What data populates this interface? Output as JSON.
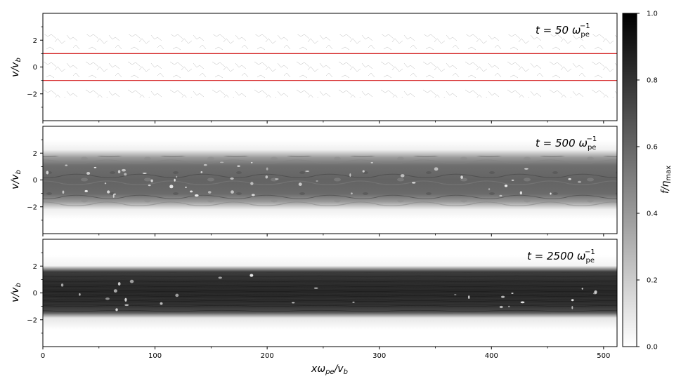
{
  "chart_data": [
    {
      "type": "heatmap",
      "title": "t = 50 ω_pe^-1",
      "title_main": "t = 50 ω",
      "title_sub": "pe",
      "title_sup": "−1",
      "xlim": [
        0,
        512
      ],
      "ylim": [
        -4,
        4
      ],
      "ylabel": "v/v_b",
      "ylabel_main": "v/v",
      "ylabel_sub": "b",
      "y_ticks": [
        -2,
        0,
        2
      ],
      "y_tick_labels": [
        "−2",
        "0",
        "2"
      ],
      "distribution": {
        "band_halfwidth": 1.5,
        "mean_intensity": 0.05,
        "texture": "sparse filaments"
      },
      "reference_lines": {
        "values": [
          1,
          -1
        ],
        "color": "#d62728"
      }
    },
    {
      "type": "heatmap",
      "title": "t = 500 ω_pe^-1",
      "title_main": "t = 500 ω",
      "title_sub": "pe",
      "title_sup": "−1",
      "xlim": [
        0,
        512
      ],
      "ylim": [
        -4,
        4
      ],
      "ylabel": "v/v_b",
      "ylabel_main": "v/v",
      "ylabel_sub": "b",
      "y_ticks": [
        -2,
        0,
        2
      ],
      "y_tick_labels": [
        "−2",
        "0",
        "2"
      ],
      "distribution": {
        "band_halfwidth": 1.8,
        "mean_intensity": 0.6,
        "texture": "turbulent band with bright holes"
      }
    },
    {
      "type": "heatmap",
      "title": "t = 2500 ω_pe^-1",
      "title_main": "t = 2500 ω",
      "title_sub": "pe",
      "title_sup": "−1",
      "xlim": [
        0,
        512
      ],
      "ylim": [
        -4,
        4
      ],
      "ylabel": "v/v_b",
      "ylabel_main": "v/v",
      "ylabel_sub": "b",
      "xlabel": "xω_pe/v_b",
      "xlabel_main": "xω",
      "xlabel_sub": "pe",
      "xlabel_tail": "/v",
      "xlabel_tail_sub": "b",
      "x_ticks": [
        0,
        100,
        200,
        300,
        400,
        500
      ],
      "x_tick_labels": [
        "0",
        "100",
        "200",
        "300",
        "400",
        "500"
      ],
      "y_ticks": [
        -2,
        0,
        2
      ],
      "y_tick_labels": [
        "−2",
        "0",
        "2"
      ],
      "distribution": {
        "band_halfwidth": 1.6,
        "mean_intensity": 0.82,
        "texture": "dense striated band with bright holes"
      }
    }
  ],
  "colorbar": {
    "label": "f/η_max",
    "label_main": "f/η",
    "label_sub": "max",
    "range": [
      0,
      1
    ],
    "ticks": [
      0,
      0.2,
      0.4,
      0.6,
      0.8,
      1.0
    ],
    "tick_labels": [
      "0.0",
      "0.2",
      "0.4",
      "0.6",
      "0.8",
      "1.0"
    ],
    "colormap": "Greys"
  }
}
